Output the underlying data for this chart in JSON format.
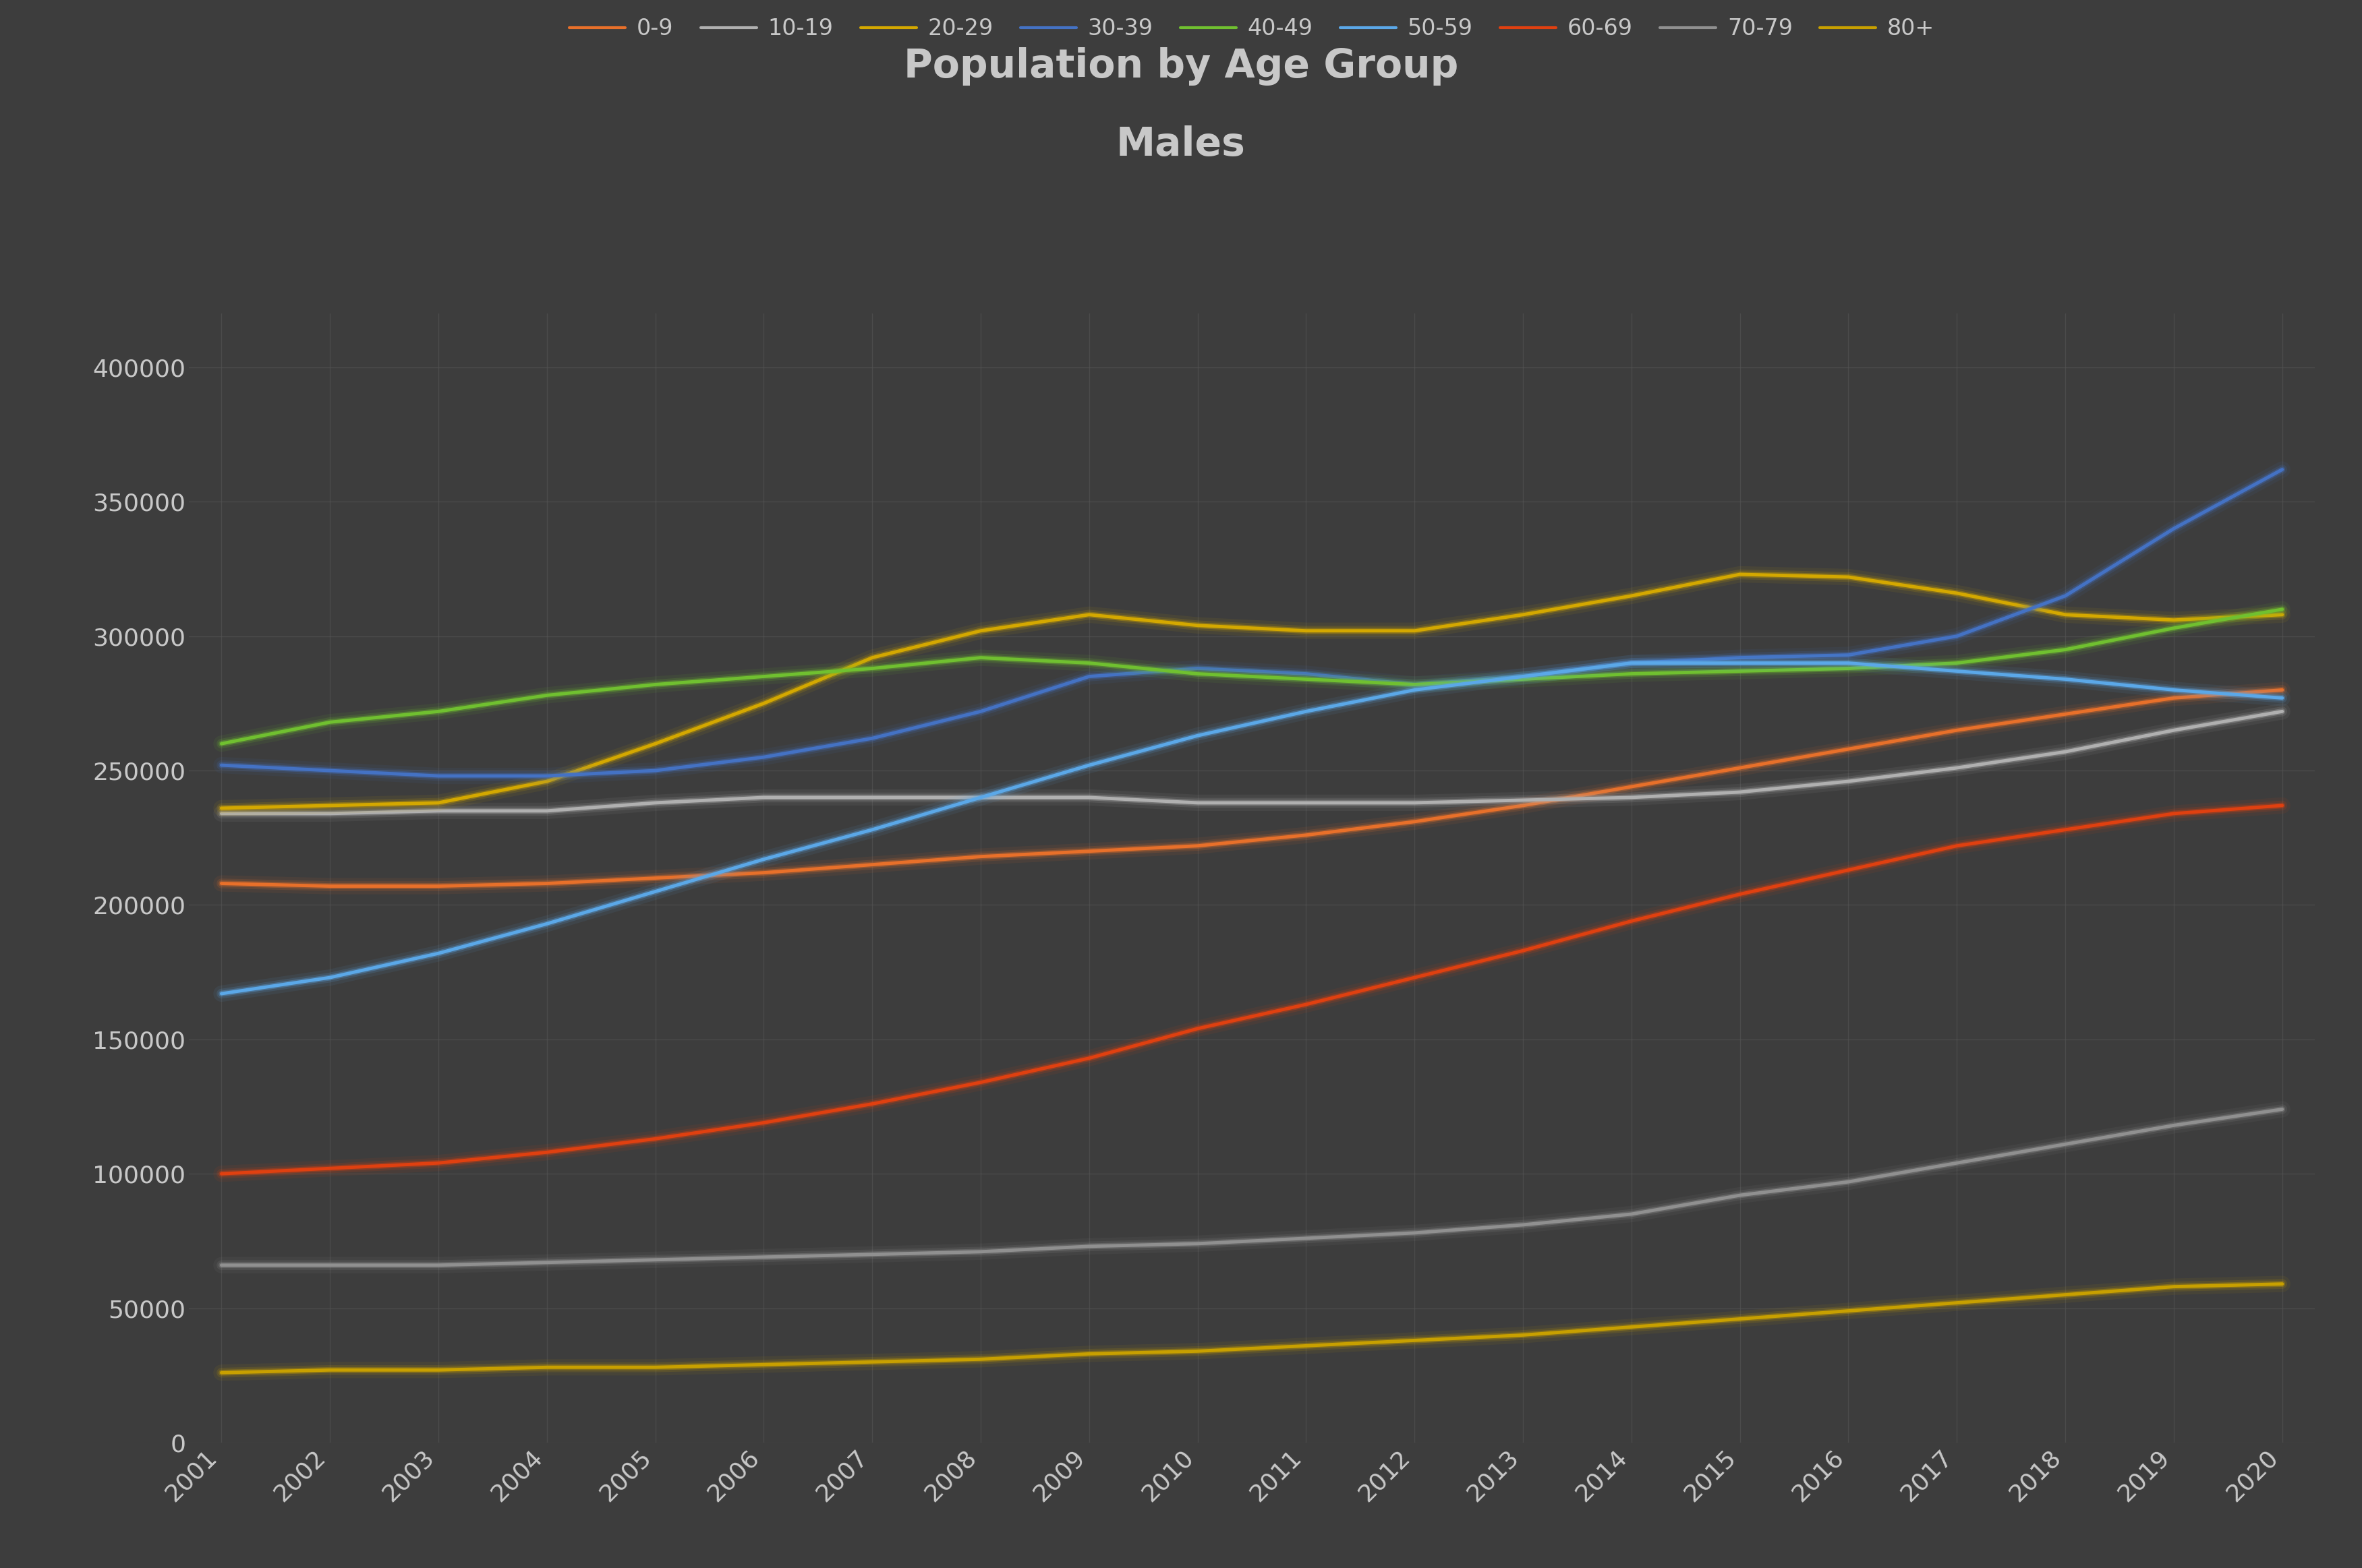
{
  "title_line1": "Population by Age Group",
  "title_line2": "Males",
  "background_color": "#3d3d3d",
  "plot_bg_color": "#3d3d3d",
  "text_color": "#c8c8c8",
  "grid_color": "#555555",
  "years": [
    2001,
    2002,
    2003,
    2004,
    2005,
    2006,
    2007,
    2008,
    2009,
    2010,
    2011,
    2012,
    2013,
    2014,
    2015,
    2016,
    2017,
    2018,
    2019,
    2020
  ],
  "series": [
    {
      "label": "0-9",
      "color": "#e8702a",
      "linewidth": 3.5,
      "values": [
        208000,
        207000,
        207000,
        208000,
        210000,
        212000,
        215000,
        218000,
        220000,
        222000,
        226000,
        231000,
        237000,
        244000,
        251000,
        258000,
        265000,
        271000,
        277000,
        280000
      ]
    },
    {
      "label": "10-19",
      "color": "#b0b0b0",
      "linewidth": 3.5,
      "values": [
        234000,
        234000,
        235000,
        235000,
        238000,
        240000,
        240000,
        240000,
        240000,
        238000,
        238000,
        238000,
        239000,
        240000,
        242000,
        246000,
        251000,
        257000,
        265000,
        272000
      ]
    },
    {
      "label": "20-29",
      "color": "#d4a800",
      "linewidth": 3.5,
      "values": [
        236000,
        237000,
        238000,
        246000,
        260000,
        275000,
        292000,
        302000,
        308000,
        304000,
        302000,
        302000,
        308000,
        315000,
        323000,
        322000,
        316000,
        308000,
        306000,
        308000
      ]
    },
    {
      "label": "30-39",
      "color": "#4472c4",
      "linewidth": 3.5,
      "values": [
        252000,
        250000,
        248000,
        248000,
        250000,
        255000,
        262000,
        272000,
        285000,
        288000,
        286000,
        282000,
        285000,
        290000,
        292000,
        293000,
        300000,
        315000,
        340000,
        362000
      ]
    },
    {
      "label": "40-49",
      "color": "#70c030",
      "linewidth": 3.5,
      "values": [
        260000,
        268000,
        272000,
        278000,
        282000,
        285000,
        288000,
        292000,
        290000,
        286000,
        284000,
        282000,
        284000,
        286000,
        287000,
        288000,
        290000,
        295000,
        303000,
        310000
      ]
    },
    {
      "label": "50-59",
      "color": "#5ba8e8",
      "linewidth": 3.5,
      "values": [
        167000,
        173000,
        182000,
        193000,
        205000,
        217000,
        228000,
        240000,
        252000,
        263000,
        272000,
        280000,
        285000,
        290000,
        290000,
        290000,
        287000,
        284000,
        280000,
        277000
      ]
    },
    {
      "label": "60-69",
      "color": "#e04010",
      "linewidth": 3.5,
      "values": [
        100000,
        102000,
        104000,
        108000,
        113000,
        119000,
        126000,
        134000,
        143000,
        154000,
        163000,
        173000,
        183000,
        194000,
        204000,
        213000,
        222000,
        228000,
        234000,
        237000
      ]
    },
    {
      "label": "70-79",
      "color": "#909090",
      "linewidth": 3.5,
      "values": [
        66000,
        66000,
        66000,
        67000,
        68000,
        69000,
        70000,
        71000,
        73000,
        74000,
        76000,
        78000,
        81000,
        85000,
        92000,
        97000,
        104000,
        111000,
        118000,
        124000
      ]
    },
    {
      "label": "80+",
      "color": "#c8a000",
      "linewidth": 3.5,
      "values": [
        26000,
        27000,
        27000,
        28000,
        28000,
        29000,
        30000,
        31000,
        33000,
        34000,
        36000,
        38000,
        40000,
        43000,
        46000,
        49000,
        52000,
        55000,
        58000,
        59000
      ]
    }
  ],
  "ylim": [
    0,
    420000
  ],
  "yticks": [
    0,
    50000,
    100000,
    150000,
    200000,
    250000,
    300000,
    350000,
    400000
  ],
  "title_fontsize": 42,
  "tick_fontsize": 26,
  "legend_fontsize": 24
}
